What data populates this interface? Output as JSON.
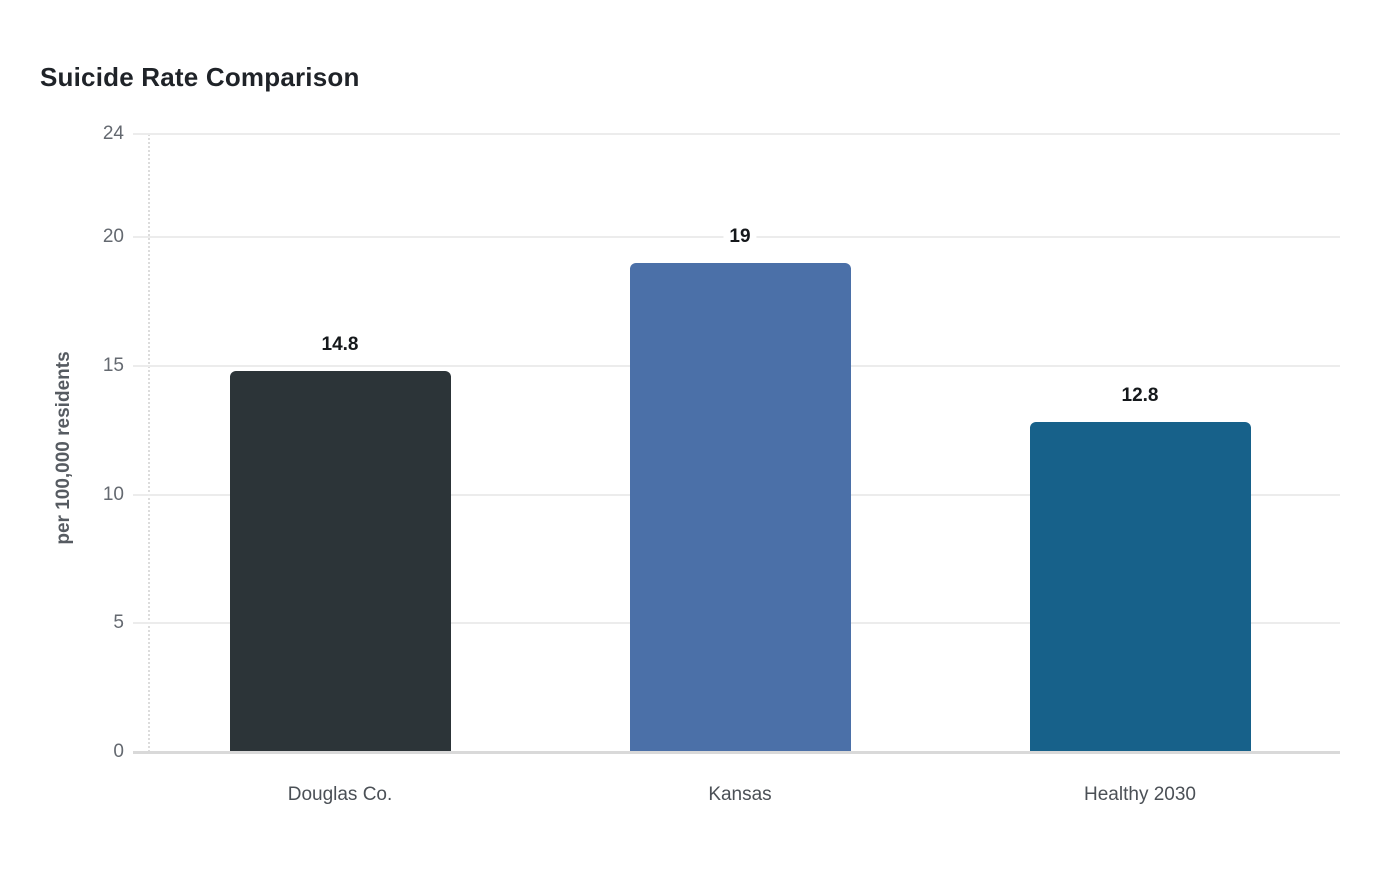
{
  "page": {
    "background": "#ffffff"
  },
  "chart_data": {
    "type": "bar",
    "title": "Suicide Rate Comparison",
    "xlabel": "",
    "ylabel": "per 100,000 residents",
    "categories": [
      "Douglas Co.",
      "Kansas",
      "Healthy 2030"
    ],
    "values": [
      14.8,
      19,
      12.8
    ],
    "value_labels": [
      "14.8",
      "19",
      "12.8"
    ],
    "bar_colors": [
      "#2c3438",
      "#4b70a8",
      "#17618a"
    ],
    "ylim": [
      0,
      24
    ],
    "y_ticks": [
      0,
      5,
      10,
      15,
      20,
      24
    ],
    "grid": "horizontal gridlines on",
    "legend": "none",
    "colors": {
      "title_text": "#1f2328",
      "axis_text": "#646970",
      "category_text": "#4b5056",
      "value_text": "#15181b",
      "gridline": "#ececec",
      "axis_line": "#d9d9d9"
    }
  }
}
